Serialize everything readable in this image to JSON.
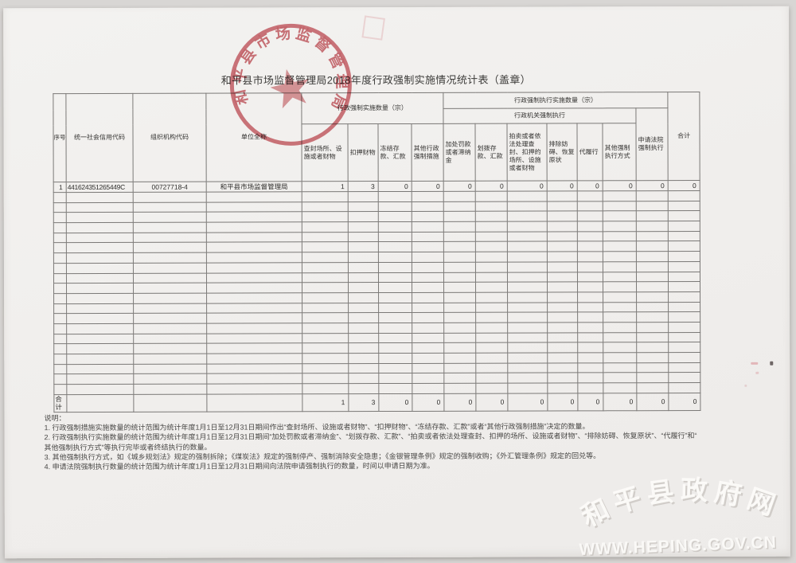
{
  "document": {
    "title": "和平县市场监督管理局2018年度行政强制实施情况统计表（盖章）"
  },
  "stamp": {
    "seal_text": "和平县市场监督管理局",
    "color": "#c34a53"
  },
  "table": {
    "headers": {
      "seq": "序号",
      "credit_code": "统一社会信用代码",
      "org_code": "组织机构代码",
      "unit_name": "单位全称",
      "impl_group": "行政强制实施数量（宗）",
      "impl_cols": [
        "查封场所、设施或者财物",
        "扣押财物",
        "冻结存款、汇款",
        "其他行政强制措施"
      ],
      "exec_group": "行政强制执行实施数量（宗）",
      "agency_group": "行政机关强制执行",
      "agency_cols": [
        "加处罚款或者滞纳金",
        "划拨存款、汇款",
        "拍卖或者依法处理查封、扣押的场所、设施或者财物",
        "排除妨碍、恢复原状",
        "代履行",
        "其他强制执行方式"
      ],
      "court_col": "申请法院强制执行",
      "total_col": "合计"
    },
    "rows": [
      {
        "seq": "1",
        "credit_code": "441624351265449C",
        "org_code": "00727718-4",
        "unit_name": "和平县市场监督管理局",
        "values": [
          "1",
          "3",
          "0",
          "0",
          "0",
          "0",
          "0",
          "0",
          "0",
          "0",
          "0",
          "0"
        ]
      }
    ],
    "empty_row_count": 20,
    "total_row": {
      "label": "合计",
      "values": [
        "1",
        "3",
        "0",
        "0",
        "0",
        "0",
        "0",
        "0",
        "0",
        "0",
        "0",
        "0"
      ]
    }
  },
  "notes": {
    "heading": "说明：",
    "lines": [
      "1. 行政强制措施实施数量的统计范围为统计年度1月1日至12月31日期间作出“查封场所、设施或者财物”、“扣押财物”、“冻结存款、汇款”或者“其他行政强制措施”决定的数量。",
      "2. 行政强制执行实施数量的统计范围为统计年度1月1日至12月31日期间“加处罚款或者滞纳金”、“划拨存款、汇款”、“拍卖或者依法处理查封、扣押的场所、设施或者财物”、“排除妨碍、恢复原状”、“代履行”和“",
      "其他强制执行方式”等执行完毕或者终结执行的数量。",
      "3. 其他强制执行方式，如《城乡规划法》规定的强制拆除；《煤炭法》规定的强制停产、强制消除安全隐患；《金银管理条例》规定的强制收购；《外汇管理条例》规定的回兑等。",
      "4. 申请法院强制执行数量的统计范围为统计年度1月1日至12月31日期间向法院申请强制执行的数量，时间以申请日期为准。"
    ]
  },
  "watermark": {
    "site_name": "和平县政府网",
    "url": "WWW.HEPING.GOV.CN"
  },
  "colors": {
    "stamp_red": "#c34a53",
    "paper": "#f1efed",
    "table_line": "#7b7977"
  }
}
